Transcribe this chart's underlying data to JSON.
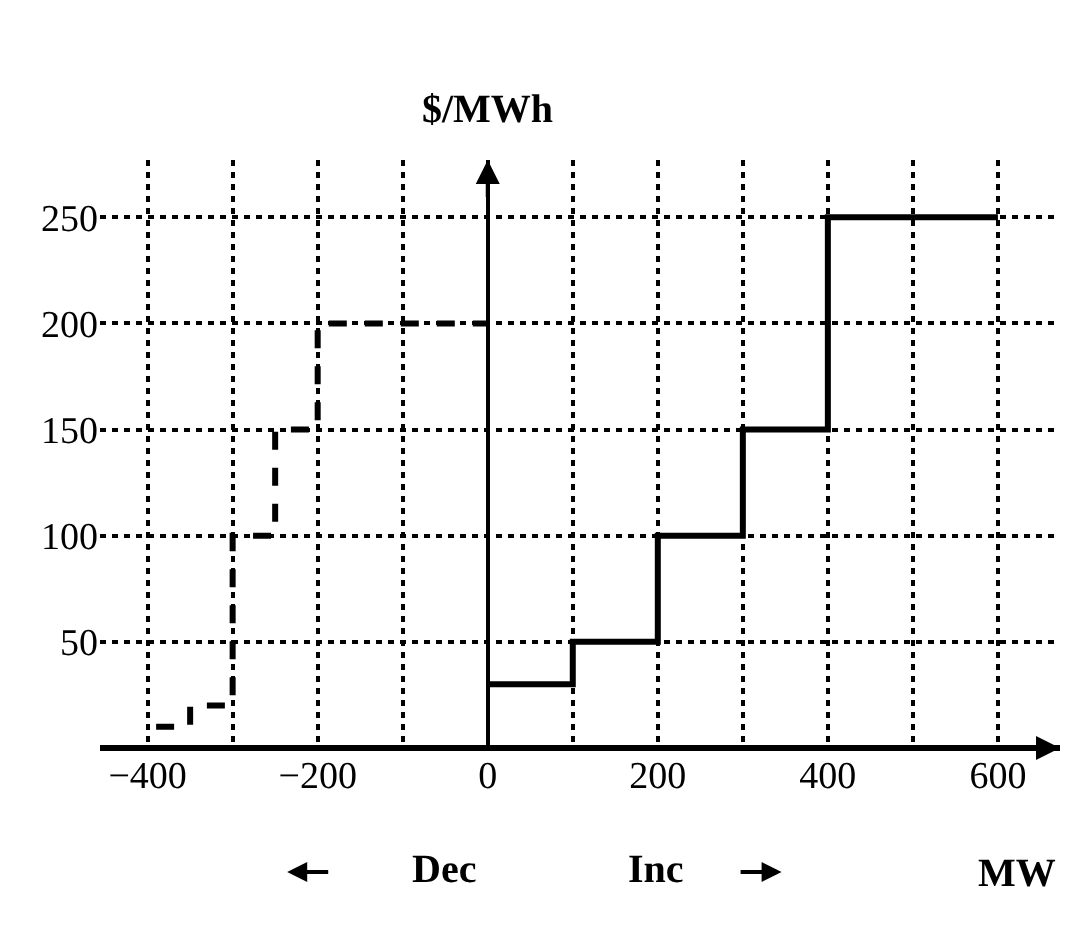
{
  "chart_data": {
    "type": "step",
    "xlabel": "MW",
    "ylabel": "$/MWh",
    "series": [
      {
        "x": [
          -390,
          -350,
          -300,
          -250,
          -200,
          0
        ],
        "values": [
          10,
          20,
          100,
          150,
          200,
          200
        ],
        "color": "#000000",
        "line_style": "dashed"
      },
      {
        "x": [
          0,
          100,
          200,
          300,
          400,
          600
        ],
        "values": [
          30,
          50,
          100,
          150,
          250,
          250
        ],
        "color": "#000000",
        "line_style": "solid"
      }
    ],
    "xlim": [
      -456,
      673
    ],
    "ylim": [
      0,
      277
    ],
    "xticks": [
      {
        "value": -400,
        "label": "−400"
      },
      {
        "value": -300,
        "label": null
      },
      {
        "value": -200,
        "label": "−200"
      },
      {
        "value": -100,
        "label": null
      },
      0,
      {
        "value": 100,
        "label": null
      },
      200,
      {
        "value": 300,
        "label": null
      },
      400,
      {
        "value": 500,
        "label": null
      },
      600
    ],
    "yticks": [
      50,
      100,
      150,
      200,
      250
    ],
    "grid": true,
    "marker": "none",
    "annotations": [
      "Dec",
      "Inc"
    ]
  }
}
